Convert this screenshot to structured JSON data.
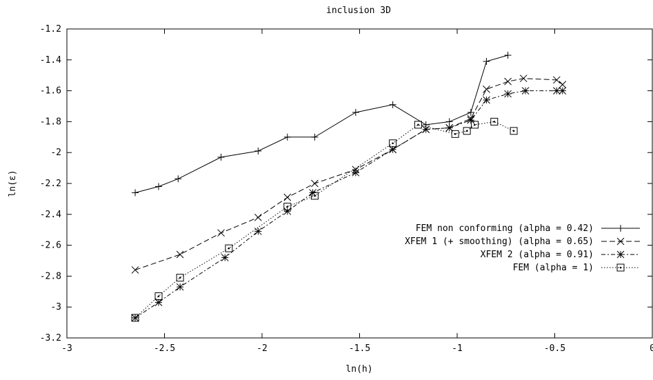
{
  "chart_data": {
    "type": "line",
    "title": "inclusion 3D",
    "xlabel": "ln(h)",
    "ylabel": "ln(ε)",
    "xlim": [
      -3,
      0
    ],
    "ylim": [
      -3.2,
      -1.2
    ],
    "x_ticks": [
      -3,
      -2.5,
      -2,
      -1.5,
      -1,
      -0.5,
      0
    ],
    "x_tick_labels": [
      "-3",
      "-2.5",
      "-2",
      "-1.5",
      "-1",
      "-0.5",
      "0"
    ],
    "y_ticks": [
      -3.2,
      -3,
      -2.8,
      -2.6,
      -2.4,
      -2.2,
      -2,
      -1.8,
      -1.6,
      -1.4,
      -1.2
    ],
    "y_tick_labels": [
      "-3.2",
      "-3",
      "-2.8",
      "-2.6",
      "-2.4",
      "-2.2",
      "-2",
      "-1.8",
      "-1.6",
      "-1.4",
      "-1.2"
    ],
    "grid": false,
    "legend_position": "right",
    "series": [
      {
        "name": "FEM non conforming (alpha = 0.42)",
        "marker": "plus",
        "dash": "solid",
        "x": [
          -2.65,
          -2.53,
          -2.43,
          -2.21,
          -2.02,
          -1.87,
          -1.73,
          -1.52,
          -1.33,
          -1.16,
          -1.04,
          -0.93,
          -0.85,
          -0.74
        ],
        "y": [
          -2.26,
          -2.22,
          -2.17,
          -2.03,
          -1.99,
          -1.9,
          -1.9,
          -1.74,
          -1.69,
          -1.82,
          -1.8,
          -1.74,
          -1.41,
          -1.37
        ]
      },
      {
        "name": "XFEM 1 (+ smoothing) (alpha = 0.65)",
        "marker": "x",
        "dash": "dashed",
        "x": [
          -2.65,
          -2.42,
          -2.21,
          -2.02,
          -1.87,
          -1.73,
          -1.52,
          -1.33,
          -1.16,
          -1.04,
          -0.93,
          -0.85,
          -0.74,
          -0.66,
          -0.49,
          -0.46
        ],
        "y": [
          -2.76,
          -2.66,
          -2.52,
          -2.42,
          -2.29,
          -2.2,
          -2.11,
          -1.98,
          -1.85,
          -1.84,
          -1.78,
          -1.59,
          -1.54,
          -1.52,
          -1.53,
          -1.56
        ]
      },
      {
        "name": "XFEM 2 (alpha = 0.91)",
        "marker": "star",
        "dash": "dash-dot",
        "x": [
          -2.65,
          -2.53,
          -2.42,
          -2.19,
          -2.02,
          -1.87,
          -1.74,
          -1.52,
          -1.33,
          -1.16,
          -1.04,
          -0.93,
          -0.85,
          -0.74,
          -0.65,
          -0.49,
          -0.46
        ],
        "y": [
          -3.07,
          -2.97,
          -2.87,
          -2.68,
          -2.51,
          -2.38,
          -2.26,
          -2.13,
          -1.98,
          -1.85,
          -1.84,
          -1.79,
          -1.66,
          -1.62,
          -1.6,
          -1.6,
          -1.6
        ]
      },
      {
        "name": "FEM (alpha = 1)",
        "marker": "box",
        "dash": "dotted",
        "x": [
          -2.65,
          -2.53,
          -2.42,
          -2.17,
          -1.87,
          -1.73,
          -1.33,
          -1.2,
          -1.01,
          -0.95,
          -0.91,
          -0.81,
          -0.71
        ],
        "y": [
          -3.07,
          -2.93,
          -2.81,
          -2.62,
          -2.35,
          -2.28,
          -1.94,
          -1.82,
          -1.88,
          -1.86,
          -1.82,
          -1.8,
          -1.86
        ]
      }
    ]
  }
}
